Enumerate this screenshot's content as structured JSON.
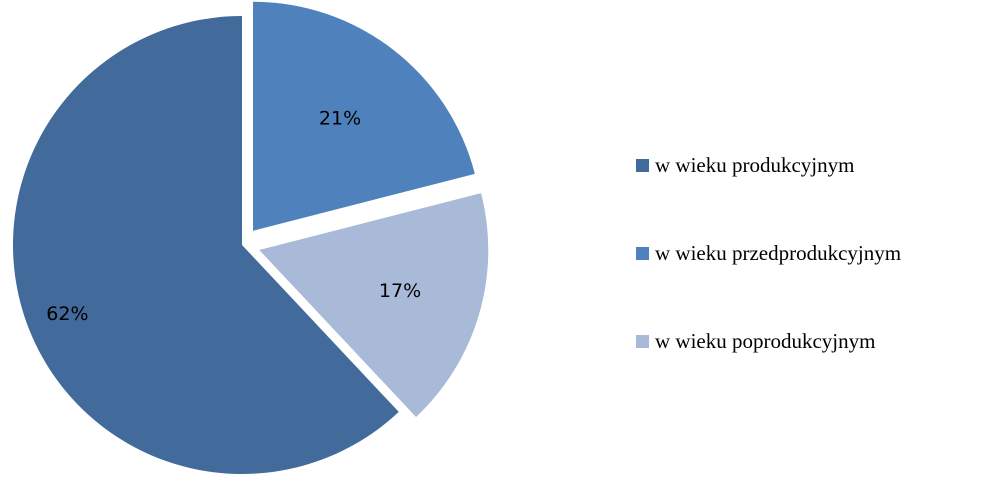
{
  "chart_data": {
    "type": "pie",
    "title": "",
    "categories": [
      "w wieku produkcyjnym",
      "w wieku przedprodukcyjnym",
      "w wieku poprodukcyjnym"
    ],
    "values": [
      62,
      21,
      17
    ],
    "value_labels": [
      "62%",
      "21%",
      "17%"
    ],
    "colors": [
      "#426a9a",
      "#4f81bd",
      "#a9bad8"
    ],
    "exploded": true,
    "legend_position": "right"
  }
}
